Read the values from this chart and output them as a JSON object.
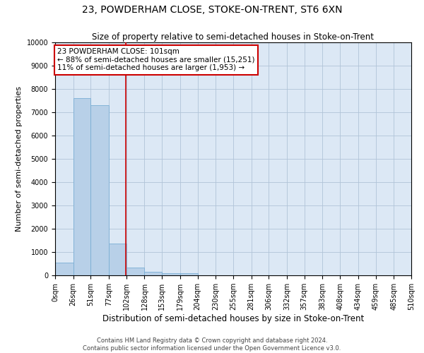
{
  "title": "23, POWDERHAM CLOSE, STOKE-ON-TRENT, ST6 6XN",
  "subtitle": "Size of property relative to semi-detached houses in Stoke-on-Trent",
  "xlabel": "Distribution of semi-detached houses by size in Stoke-on-Trent",
  "ylabel": "Number of semi-detached properties",
  "footer_line1": "Contains HM Land Registry data © Crown copyright and database right 2024.",
  "footer_line2": "Contains public sector information licensed under the Open Government Licence v3.0.",
  "bin_edges": [
    0,
    26,
    51,
    77,
    102,
    128,
    153,
    179,
    204,
    230,
    255,
    281,
    306,
    332,
    357,
    383,
    408,
    434,
    459,
    485,
    510
  ],
  "bar_heights": [
    550,
    7600,
    7300,
    1350,
    320,
    150,
    100,
    80,
    0,
    0,
    0,
    0,
    0,
    0,
    0,
    0,
    0,
    0,
    0,
    0
  ],
  "bar_color": "#b8d0e8",
  "bar_edgecolor": "#7aaed4",
  "property_size": 101,
  "property_line_color": "#cc0000",
  "annotation_text_line1": "23 POWDERHAM CLOSE: 101sqm",
  "annotation_text_line2": "← 88% of semi-detached houses are smaller (15,251)",
  "annotation_text_line3": "11% of semi-detached houses are larger (1,953) →",
  "annotation_box_color": "#ffffff",
  "annotation_box_edgecolor": "#cc0000",
  "ylim": [
    0,
    10000
  ],
  "yticks": [
    0,
    1000,
    2000,
    3000,
    4000,
    5000,
    6000,
    7000,
    8000,
    9000,
    10000
  ],
  "background_color": "#ffffff",
  "axes_facecolor": "#dce8f5",
  "grid_color": "#b0c4d8",
  "title_fontsize": 10,
  "subtitle_fontsize": 8.5,
  "tick_label_fontsize": 7,
  "ylabel_fontsize": 8,
  "xlabel_fontsize": 8.5
}
